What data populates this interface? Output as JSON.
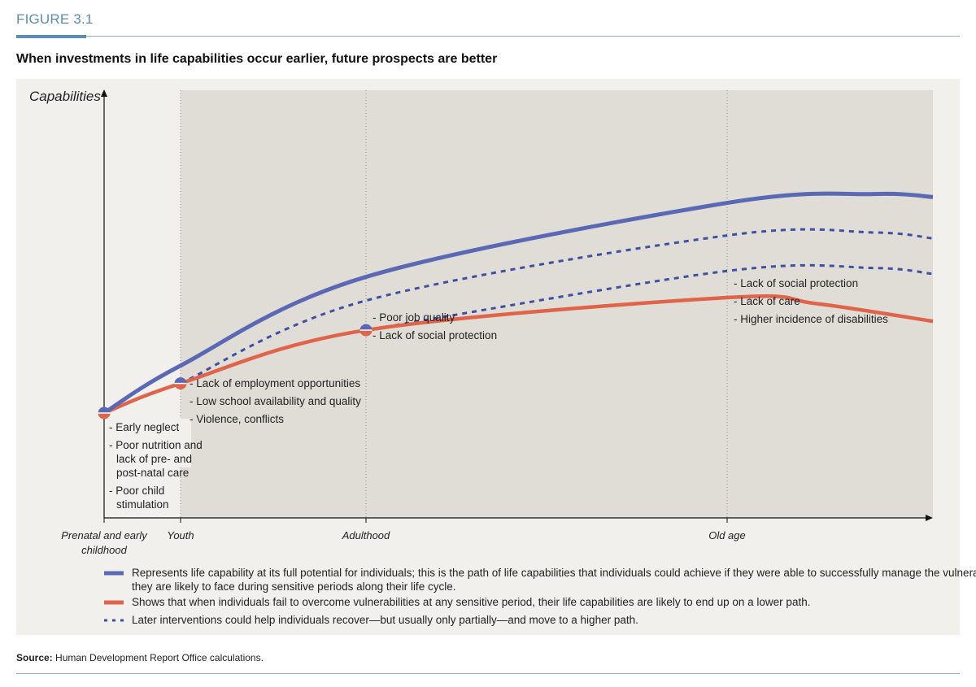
{
  "figure_label": "FIGURE 3.1",
  "title": "When investments in life capabilities occur earlier, future prospects are better",
  "source_label": "Source:",
  "source_text": "Human Development Report Office calculations.",
  "colors": {
    "full_potential": "#5b69b5",
    "lower_path": "#e0644a",
    "recovery": "#3f4fa6",
    "panel": "#f1f0ec",
    "shaded": "#dfddd6"
  },
  "chart_data": {
    "type": "line",
    "title": "",
    "ylabel": "Capabilities",
    "xlabel": "",
    "x_stages": [
      "Prenatal and early childhood",
      "Youth",
      "Adulthood",
      "Old age"
    ],
    "y_ticks": [],
    "series": [
      {
        "style": "solid",
        "color": "#5b69b5",
        "points": [
          [
            0,
            0
          ],
          [
            1,
            16
          ],
          [
            2,
            46
          ],
          [
            3,
            71
          ],
          [
            4,
            74
          ],
          [
            4.4,
            73
          ]
        ]
      },
      {
        "style": "solid",
        "color": "#e0644a",
        "points": [
          [
            0,
            0
          ],
          [
            1,
            10
          ],
          [
            2,
            28
          ],
          [
            3,
            39
          ],
          [
            3.6,
            37
          ],
          [
            4.4,
            31
          ]
        ]
      },
      {
        "style": "dotted",
        "color": "#3f4fa6",
        "points": [
          [
            1,
            10
          ],
          [
            2,
            38
          ],
          [
            3,
            60
          ],
          [
            4,
            61
          ],
          [
            4.4,
            59
          ]
        ]
      },
      {
        "style": "dotted",
        "color": "#3f4fa6",
        "points": [
          [
            2,
            28
          ],
          [
            3,
            48
          ],
          [
            4,
            49
          ],
          [
            4.4,
            47
          ]
        ]
      }
    ],
    "markers": [
      {
        "x": 0,
        "y": 0
      },
      {
        "x": 1,
        "y": 10
      },
      {
        "x": 2,
        "y": 28
      }
    ],
    "annotations": [
      {
        "stage": 0,
        "lines": [
          "- Early neglect",
          "- Poor nutrition and",
          "lack of pre-  and",
          "post-natal care",
          "- Poor child",
          "stimulation"
        ]
      },
      {
        "stage": 1,
        "lines": [
          "- Lack of employment opportunities",
          "- Low school availability and quality",
          "- Violence, conflicts"
        ]
      },
      {
        "stage": 2,
        "lines": [
          "- Poor job quality",
          "- Lack of social protection"
        ]
      },
      {
        "stage": 3,
        "lines": [
          "- Lack of social protection",
          "- Lack of care",
          "- Higher incidence of disabilities"
        ]
      }
    ],
    "legend": [
      {
        "style": "solid",
        "color": "#5b69b5",
        "text": [
          "Represents life capability at its full potential for individuals; this is the path of life capabilities that individuals could achieve if they were able to successfully manage the vulnerabilities",
          "they are likely to face during sensitive periods along their life cycle."
        ]
      },
      {
        "style": "solid",
        "color": "#e0644a",
        "text": [
          "Shows that when individuals fail to overcome vulnerabilities at any sensitive period, their life capabilities are likely to end up on a lower path."
        ]
      },
      {
        "style": "dotted",
        "color": "#3f4fa6",
        "text": [
          "Later interventions could help individuals recover—but usually only partially—and move to a higher path."
        ]
      }
    ]
  }
}
